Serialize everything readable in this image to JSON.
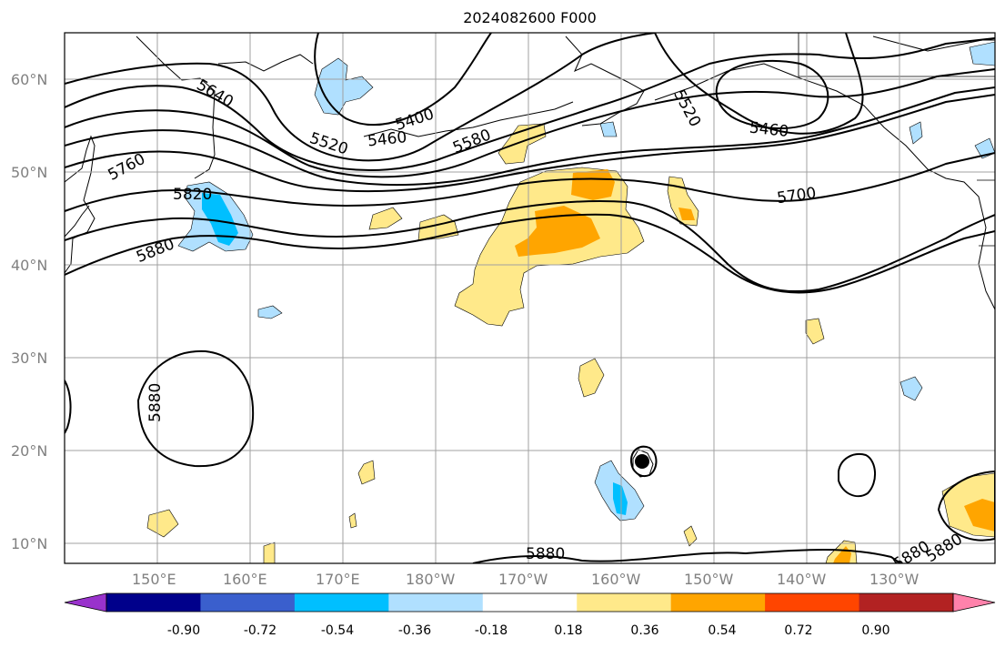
{
  "title": "2024082600 F000",
  "map": {
    "lat_ticks": [
      "60°N",
      "50°N",
      "40°N",
      "30°N",
      "20°N",
      "10°N"
    ],
    "lon_ticks": [
      "150°E",
      "160°E",
      "170°E",
      "180°W",
      "170°W",
      "160°W",
      "150°W",
      "140°W",
      "130°W"
    ],
    "contour_labels": [
      "5640",
      "5400",
      "5460",
      "5520",
      "5580",
      "5760",
      "5820",
      "5880",
      "5520",
      "5460",
      "5700",
      "5880",
      "5880",
      "5880",
      "5880"
    ],
    "contour_color": "#000000",
    "grid": true
  },
  "colorbar": {
    "labels": [
      "-0.90",
      "-0.72",
      "-0.54",
      "-0.36",
      "-0.18",
      "0.18",
      "0.36",
      "0.54",
      "0.72",
      "0.90"
    ],
    "colors": [
      "#9932cc",
      "#00008b",
      "#3a5fcd",
      "#00bfff",
      "#b0e0ff",
      "#ffffff",
      "#ffe98a",
      "#ffa500",
      "#ff4500",
      "#b22222",
      "#ff82ab"
    ]
  }
}
